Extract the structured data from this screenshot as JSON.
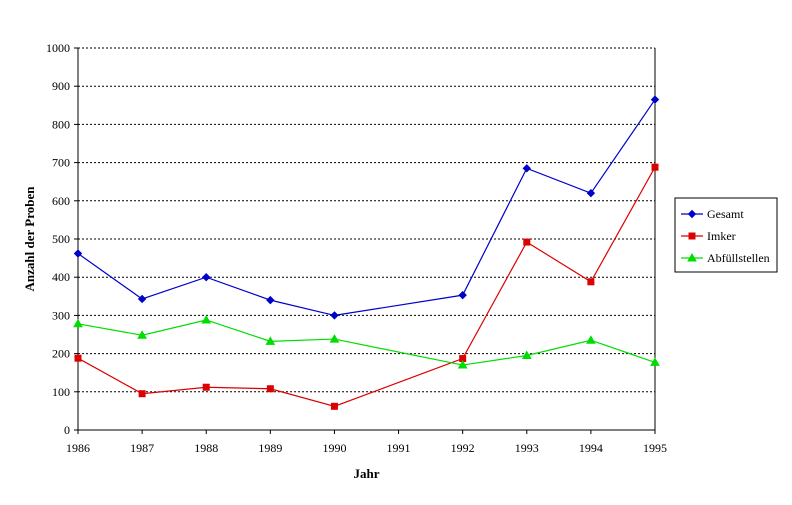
{
  "chart_data": {
    "type": "line",
    "title": "",
    "xlabel": "Jahr",
    "ylabel": "Anzahl der Proben",
    "x": [
      "1986",
      "1987",
      "1988",
      "1989",
      "1990",
      "1991",
      "1992",
      "1993",
      "1994",
      "1995"
    ],
    "ylim": [
      0,
      1000
    ],
    "yticks": [
      "0",
      "100",
      "200",
      "300",
      "400",
      "500",
      "600",
      "700",
      "800",
      "900",
      "1000"
    ],
    "grid": "horizontal dotted",
    "legend_position": "right",
    "series": [
      {
        "name": "Gesamt",
        "color": "#0000cc",
        "marker": "diamond",
        "values": [
          462,
          343,
          400,
          340,
          300,
          null,
          353,
          685,
          620,
          865
        ]
      },
      {
        "name": "Imker",
        "color": "#dd0000",
        "marker": "square",
        "values": [
          188,
          95,
          112,
          108,
          62,
          null,
          187,
          492,
          388,
          688
        ]
      },
      {
        "name": "Abfüllstellen",
        "color": "#00dd00",
        "marker": "triangle",
        "values": [
          278,
          248,
          288,
          232,
          238,
          null,
          170,
          195,
          235,
          177
        ]
      }
    ]
  }
}
